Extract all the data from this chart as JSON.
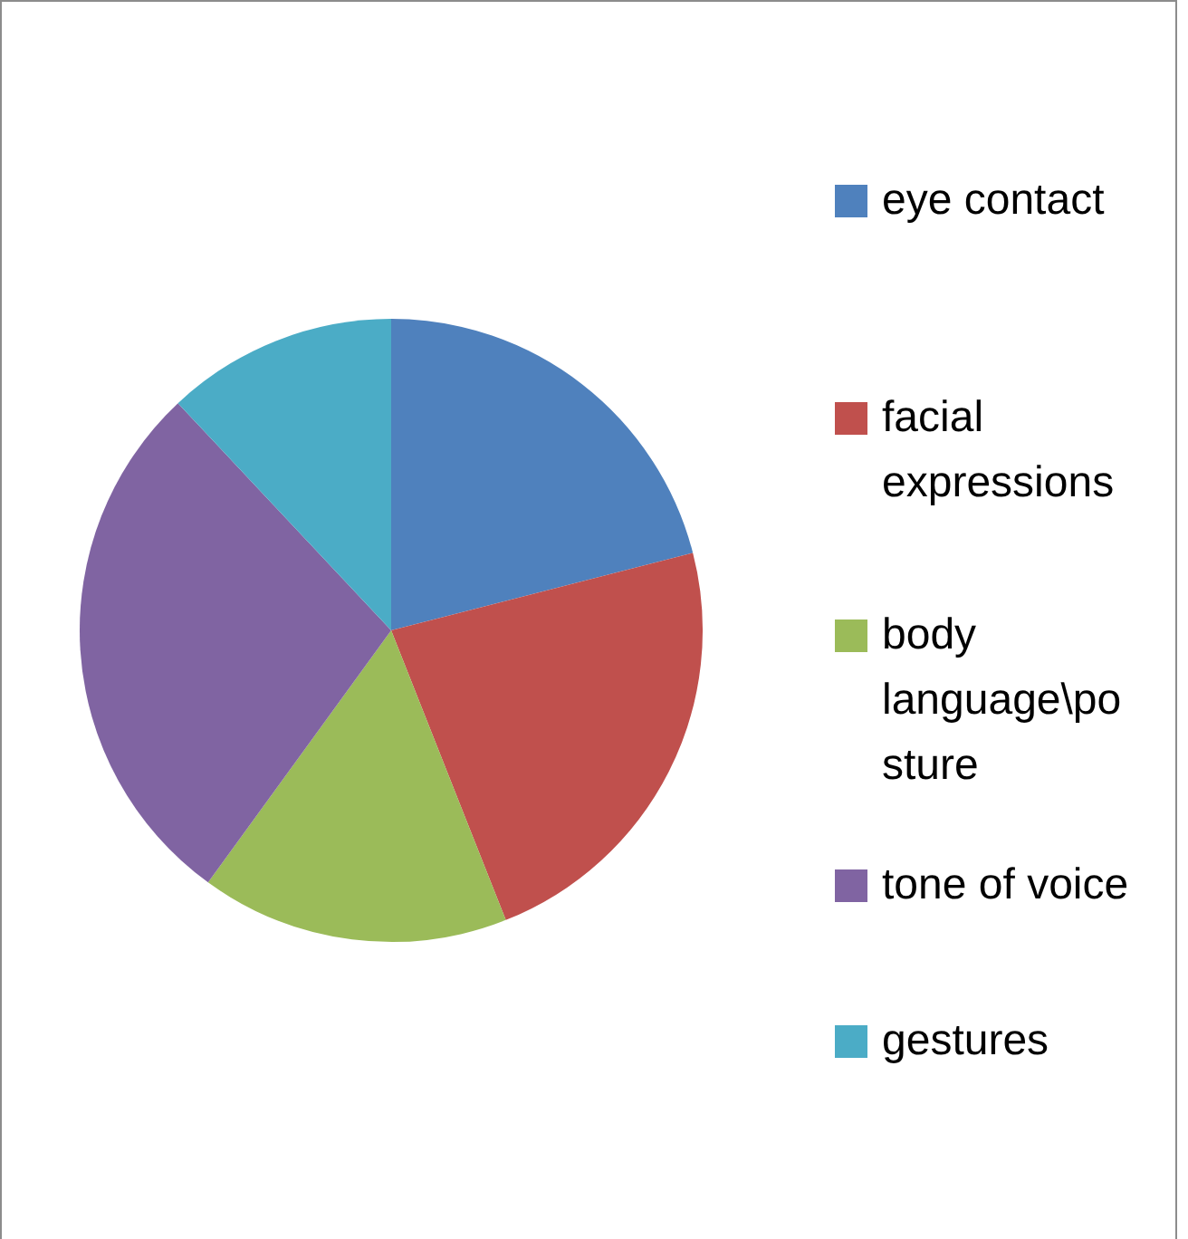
{
  "chart_data": {
    "type": "pie",
    "categories": [
      "eye contact",
      "facial expressions",
      "body language\\posture",
      "tone of voice",
      "gestures"
    ],
    "values": [
      21,
      23,
      16,
      28,
      12
    ],
    "colors": [
      "#4f81bd",
      "#c0504d",
      "#9bbb59",
      "#8064a2",
      "#4bacc6"
    ],
    "legend": "right"
  }
}
